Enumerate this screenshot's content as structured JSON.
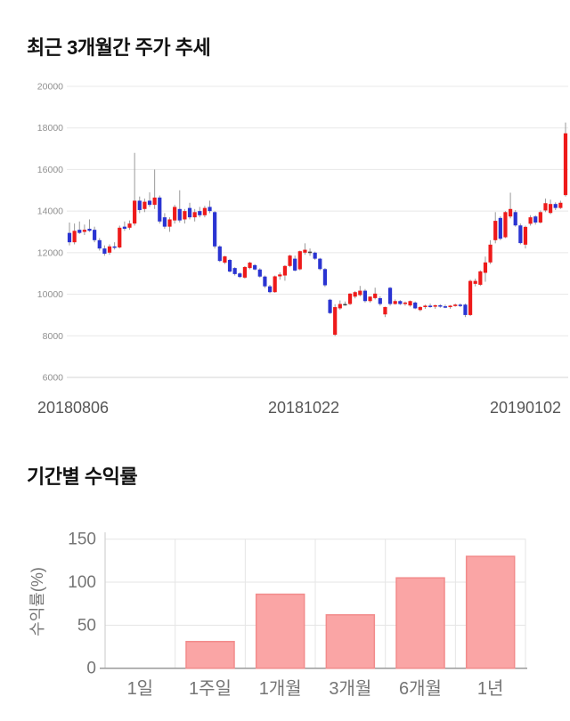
{
  "page": {
    "background": "#ffffff"
  },
  "chart_data": [
    {
      "type": "candlestick",
      "title": "최근 3개월간 주가 추세",
      "x_tick_labels": [
        "20180806",
        "20181022",
        "20190102"
      ],
      "y_ticks": [
        20000,
        18000,
        16000,
        14000,
        12000,
        10000,
        8000,
        6000
      ],
      "ylim": [
        6000,
        20000
      ],
      "grid": true,
      "legend": "none",
      "up_color": "#ee1a1a",
      "down_color": "#2a34d2",
      "flat_color": "#444444",
      "wick_color": "#999999",
      "candles_ohlc": [
        [
          12950,
          13450,
          12350,
          12500
        ],
        [
          12500,
          13400,
          12400,
          13050
        ],
        [
          13100,
          13500,
          12900,
          12950
        ],
        [
          13000,
          13350,
          12850,
          13100
        ],
        [
          13150,
          13600,
          13000,
          13050
        ],
        [
          13100,
          13250,
          12500,
          12600
        ],
        [
          12600,
          12700,
          12100,
          12200
        ],
        [
          12200,
          12350,
          11850,
          11950
        ],
        [
          12000,
          12400,
          11900,
          12300
        ],
        [
          12300,
          12500,
          12150,
          12250
        ],
        [
          12250,
          13300,
          12200,
          13200
        ],
        [
          13250,
          13500,
          13050,
          13150
        ],
        [
          13200,
          13550,
          13100,
          13400
        ],
        [
          13400,
          16800,
          13300,
          14500
        ],
        [
          14500,
          14700,
          13900,
          14050
        ],
        [
          14100,
          14600,
          13950,
          14450
        ],
        [
          14500,
          14900,
          14200,
          14300
        ],
        [
          14300,
          16000,
          14100,
          14650
        ],
        [
          14650,
          14750,
          13400,
          13500
        ],
        [
          13700,
          13900,
          13150,
          13250
        ],
        [
          13250,
          13700,
          13000,
          13600
        ],
        [
          13550,
          14300,
          13400,
          14200
        ],
        [
          14100,
          15000,
          13450,
          13550
        ],
        [
          13600,
          14100,
          13400,
          14000
        ],
        [
          14150,
          14400,
          13600,
          13700
        ],
        [
          13700,
          14100,
          13500,
          13950
        ],
        [
          14000,
          14200,
          13700,
          13800
        ],
        [
          13800,
          14250,
          13700,
          14150
        ],
        [
          14200,
          14500,
          13900,
          14000
        ],
        [
          13950,
          14000,
          12200,
          12300
        ],
        [
          12300,
          12350,
          11550,
          11600
        ],
        [
          11520,
          11850,
          11450,
          11820
        ],
        [
          11650,
          11700,
          11050,
          11090
        ],
        [
          11260,
          11300,
          10900,
          10970
        ],
        [
          11000,
          11050,
          10780,
          10830
        ],
        [
          10800,
          11350,
          10750,
          11310
        ],
        [
          11260,
          11560,
          11200,
          11520
        ],
        [
          11400,
          11450,
          11150,
          11190
        ],
        [
          11190,
          11250,
          10800,
          10850
        ],
        [
          10850,
          10900,
          10300,
          10380
        ],
        [
          10380,
          10450,
          10050,
          10100
        ],
        [
          10100,
          10900,
          10070,
          10860
        ],
        [
          10860,
          11050,
          10700,
          10950
        ],
        [
          10900,
          11400,
          10650,
          11360
        ],
        [
          11360,
          11900,
          11300,
          11860
        ],
        [
          11710,
          11860,
          11100,
          11140
        ],
        [
          11200,
          12100,
          11150,
          12070
        ],
        [
          12000,
          12450,
          11900,
          12140
        ],
        [
          12050,
          12200,
          11850,
          12050
        ],
        [
          12000,
          12050,
          11650,
          11710
        ],
        [
          11710,
          11750,
          11150,
          11210
        ],
        [
          11210,
          11260,
          10350,
          10430
        ],
        [
          9735,
          9780,
          9050,
          9092
        ],
        [
          8050,
          9520,
          7990,
          9380
        ],
        [
          9320,
          9700,
          9250,
          9530
        ],
        [
          9530,
          9650,
          9450,
          9530
        ],
        [
          9530,
          10050,
          9480,
          10030
        ],
        [
          9885,
          10150,
          9800,
          10100
        ],
        [
          9960,
          10400,
          9900,
          10170
        ],
        [
          10170,
          10250,
          9600,
          9670
        ],
        [
          9670,
          9900,
          9600,
          9885
        ],
        [
          9814,
          10314,
          9750,
          10030
        ],
        [
          9810,
          9900,
          9450,
          9530
        ],
        [
          9030,
          9400,
          8900,
          9385
        ],
        [
          10310,
          10350,
          9450,
          9530
        ],
        [
          9530,
          9750,
          9500,
          9670
        ],
        [
          9670,
          9720,
          9480,
          9530
        ],
        [
          9530,
          9650,
          9450,
          9600
        ],
        [
          9460,
          9700,
          9400,
          9670
        ],
        [
          9600,
          9650,
          9280,
          9320
        ],
        [
          9240,
          9420,
          9180,
          9385
        ],
        [
          9385,
          9500,
          9300,
          9450
        ],
        [
          9450,
          9550,
          9350,
          9400
        ],
        [
          9400,
          9500,
          9300,
          9470
        ],
        [
          9470,
          9520,
          9350,
          9420
        ],
        [
          9420,
          9500,
          9330,
          9380
        ],
        [
          9380,
          9480,
          9300,
          9450
        ],
        [
          9450,
          9550,
          9400,
          9500
        ],
        [
          9500,
          9560,
          9380,
          9430
        ],
        [
          9500,
          9550,
          8900,
          9000
        ],
        [
          9000,
          10700,
          8950,
          10640
        ],
        [
          10500,
          10750,
          10380,
          10640
        ],
        [
          10455,
          11150,
          10400,
          11100
        ],
        [
          11030,
          11810,
          10600,
          11530
        ],
        [
          11530,
          12600,
          11450,
          12385
        ],
        [
          12600,
          13950,
          12450,
          13530
        ],
        [
          13670,
          13750,
          12600,
          12670
        ],
        [
          12740,
          14000,
          12700,
          13950
        ],
        [
          13740,
          14885,
          13650,
          14100
        ],
        [
          13950,
          14050,
          13250,
          13310
        ],
        [
          13310,
          13400,
          12400,
          12460
        ],
        [
          12385,
          13300,
          12200,
          13240
        ],
        [
          13390,
          13800,
          13300,
          13700
        ],
        [
          13740,
          13800,
          13350,
          13450
        ],
        [
          13450,
          14030,
          13400,
          13950
        ],
        [
          14030,
          14600,
          13950,
          14380
        ],
        [
          13910,
          14550,
          13850,
          14340
        ],
        [
          14340,
          14420,
          14050,
          14150
        ],
        [
          14150,
          14500,
          14100,
          14400
        ],
        [
          14770,
          18260,
          14700,
          17740
        ]
      ]
    },
    {
      "type": "bar",
      "title": "기간별 수익률",
      "categories": [
        "1일",
        "1주일",
        "1개월",
        "3개월",
        "6개월",
        "1년"
      ],
      "values": [
        0,
        31,
        86,
        62,
        105,
        130
      ],
      "ylabel": "수익률(%)",
      "xlabel": "",
      "y_ticks": [
        0,
        50,
        100,
        150
      ],
      "ylim": [
        0,
        150
      ],
      "grid": true,
      "legend": "none",
      "bar_fill": "#faa5a5",
      "bar_border": "#f28b8b"
    }
  ]
}
